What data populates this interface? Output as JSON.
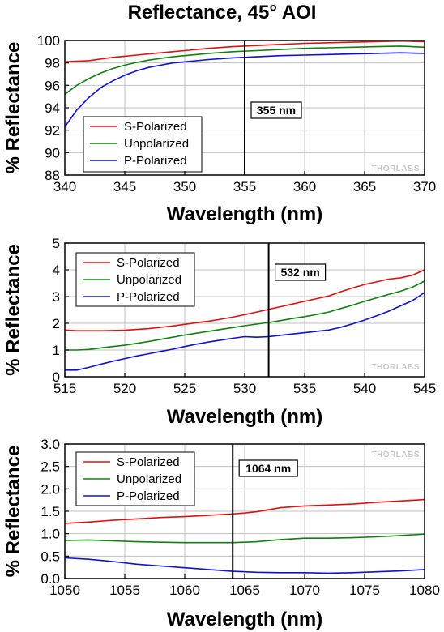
{
  "title": "Reflectance, 45° AOI",
  "watermark": "THORLABS",
  "colors": {
    "s": "#e01010",
    "u": "#108010",
    "p": "#1010d0",
    "grid": "#c0c0c0"
  },
  "chart_data": [
    {
      "type": "line",
      "xlabel": "Wavelength (nm)",
      "ylabel": "% Reflectance",
      "xlim": [
        340,
        370
      ],
      "ylim": [
        88,
        100
      ],
      "xticks": [
        "340",
        "345",
        "350",
        "355",
        "360",
        "365",
        "370"
      ],
      "yticks": [
        "88",
        "90",
        "92",
        "94",
        "96",
        "98",
        "100"
      ],
      "grid": true,
      "legend": "bottom-left",
      "marker": {
        "x": 355,
        "label": "355 nm"
      },
      "x": [
        340,
        341,
        342,
        343,
        344,
        345,
        346,
        347,
        348,
        349,
        350,
        352,
        354,
        356,
        358,
        360,
        362,
        364,
        366,
        368,
        370
      ],
      "series": [
        {
          "name": "S-Polarized",
          "color": "s",
          "values": [
            98.1,
            98.15,
            98.2,
            98.35,
            98.5,
            98.6,
            98.7,
            98.8,
            98.9,
            99.0,
            99.1,
            99.3,
            99.45,
            99.55,
            99.65,
            99.75,
            99.8,
            99.85,
            99.9,
            99.95,
            99.9
          ]
        },
        {
          "name": "Unpolarized",
          "color": "u",
          "values": [
            95.2,
            96.0,
            96.6,
            97.1,
            97.5,
            97.8,
            98.05,
            98.25,
            98.4,
            98.55,
            98.65,
            98.85,
            99.0,
            99.1,
            99.2,
            99.3,
            99.35,
            99.4,
            99.45,
            99.5,
            99.4
          ]
        },
        {
          "name": "P-Polarized",
          "color": "p",
          "values": [
            92.3,
            93.8,
            94.9,
            95.8,
            96.4,
            96.9,
            97.3,
            97.6,
            97.8,
            98.0,
            98.1,
            98.3,
            98.45,
            98.55,
            98.65,
            98.7,
            98.75,
            98.8,
            98.85,
            98.9,
            98.85
          ]
        }
      ]
    },
    {
      "type": "line",
      "xlabel": "Wavelength (nm)",
      "ylabel": "% Reflectance",
      "xlim": [
        515,
        545
      ],
      "ylim": [
        0,
        5
      ],
      "xticks": [
        "515",
        "520",
        "525",
        "530",
        "535",
        "540",
        "545"
      ],
      "yticks": [
        "0",
        "1",
        "2",
        "3",
        "4",
        "5"
      ],
      "grid": true,
      "legend": "top-left",
      "marker": {
        "x": 532,
        "label": "532 nm"
      },
      "x": [
        515,
        516,
        517,
        518,
        519,
        520,
        521,
        522,
        523,
        524,
        525,
        526,
        527,
        528,
        529,
        530,
        531,
        532,
        533,
        534,
        535,
        536,
        537,
        538,
        539,
        540,
        541,
        542,
        543,
        544,
        545
      ],
      "series": [
        {
          "name": "S-Polarized",
          "color": "s",
          "values": [
            1.75,
            1.72,
            1.72,
            1.72,
            1.73,
            1.74,
            1.77,
            1.8,
            1.85,
            1.9,
            1.96,
            2.02,
            2.08,
            2.15,
            2.23,
            2.32,
            2.42,
            2.52,
            2.62,
            2.72,
            2.82,
            2.92,
            3.02,
            3.18,
            3.32,
            3.45,
            3.55,
            3.65,
            3.7,
            3.8,
            4.0
          ]
        },
        {
          "name": "Unpolarized",
          "color": "u",
          "values": [
            1.0,
            1.0,
            1.02,
            1.08,
            1.13,
            1.18,
            1.25,
            1.32,
            1.4,
            1.48,
            1.56,
            1.63,
            1.7,
            1.77,
            1.84,
            1.91,
            1.97,
            2.03,
            2.1,
            2.18,
            2.25,
            2.33,
            2.42,
            2.55,
            2.68,
            2.82,
            2.95,
            3.08,
            3.2,
            3.35,
            3.58
          ]
        },
        {
          "name": "P-Polarized",
          "color": "p",
          "values": [
            0.25,
            0.25,
            0.35,
            0.47,
            0.58,
            0.68,
            0.78,
            0.86,
            0.95,
            1.03,
            1.13,
            1.22,
            1.3,
            1.37,
            1.44,
            1.5,
            1.48,
            1.5,
            1.55,
            1.6,
            1.65,
            1.7,
            1.75,
            1.85,
            1.98,
            2.12,
            2.28,
            2.45,
            2.65,
            2.85,
            3.15
          ]
        }
      ]
    },
    {
      "type": "line",
      "xlabel": "Wavelength (nm)",
      "ylabel": "% Reflectance",
      "xlim": [
        1050,
        1080
      ],
      "ylim": [
        0,
        3
      ],
      "xticks": [
        "1050",
        "1055",
        "1060",
        "1065",
        "1070",
        "1075",
        "1080"
      ],
      "yticks": [
        "0.0",
        "0.5",
        "1.0",
        "1.5",
        "2.0",
        "2.5",
        "3.0"
      ],
      "grid": true,
      "legend": "top-left",
      "marker": {
        "x": 1064,
        "label": "1064 nm"
      },
      "x": [
        1050,
        1052,
        1054,
        1056,
        1058,
        1060,
        1062,
        1064,
        1065,
        1066,
        1068,
        1070,
        1072,
        1074,
        1076,
        1078,
        1080
      ],
      "series": [
        {
          "name": "S-Polarized",
          "color": "s",
          "values": [
            1.23,
            1.26,
            1.3,
            1.33,
            1.36,
            1.38,
            1.41,
            1.44,
            1.46,
            1.49,
            1.58,
            1.62,
            1.64,
            1.66,
            1.7,
            1.73,
            1.76
          ]
        },
        {
          "name": "Unpolarized",
          "color": "u",
          "values": [
            0.85,
            0.86,
            0.84,
            0.82,
            0.81,
            0.8,
            0.8,
            0.8,
            0.81,
            0.82,
            0.87,
            0.9,
            0.9,
            0.91,
            0.93,
            0.96,
            0.99
          ]
        },
        {
          "name": "P-Polarized",
          "color": "p",
          "values": [
            0.46,
            0.43,
            0.38,
            0.32,
            0.28,
            0.24,
            0.2,
            0.16,
            0.15,
            0.14,
            0.13,
            0.13,
            0.12,
            0.13,
            0.15,
            0.17,
            0.2
          ]
        }
      ]
    }
  ]
}
